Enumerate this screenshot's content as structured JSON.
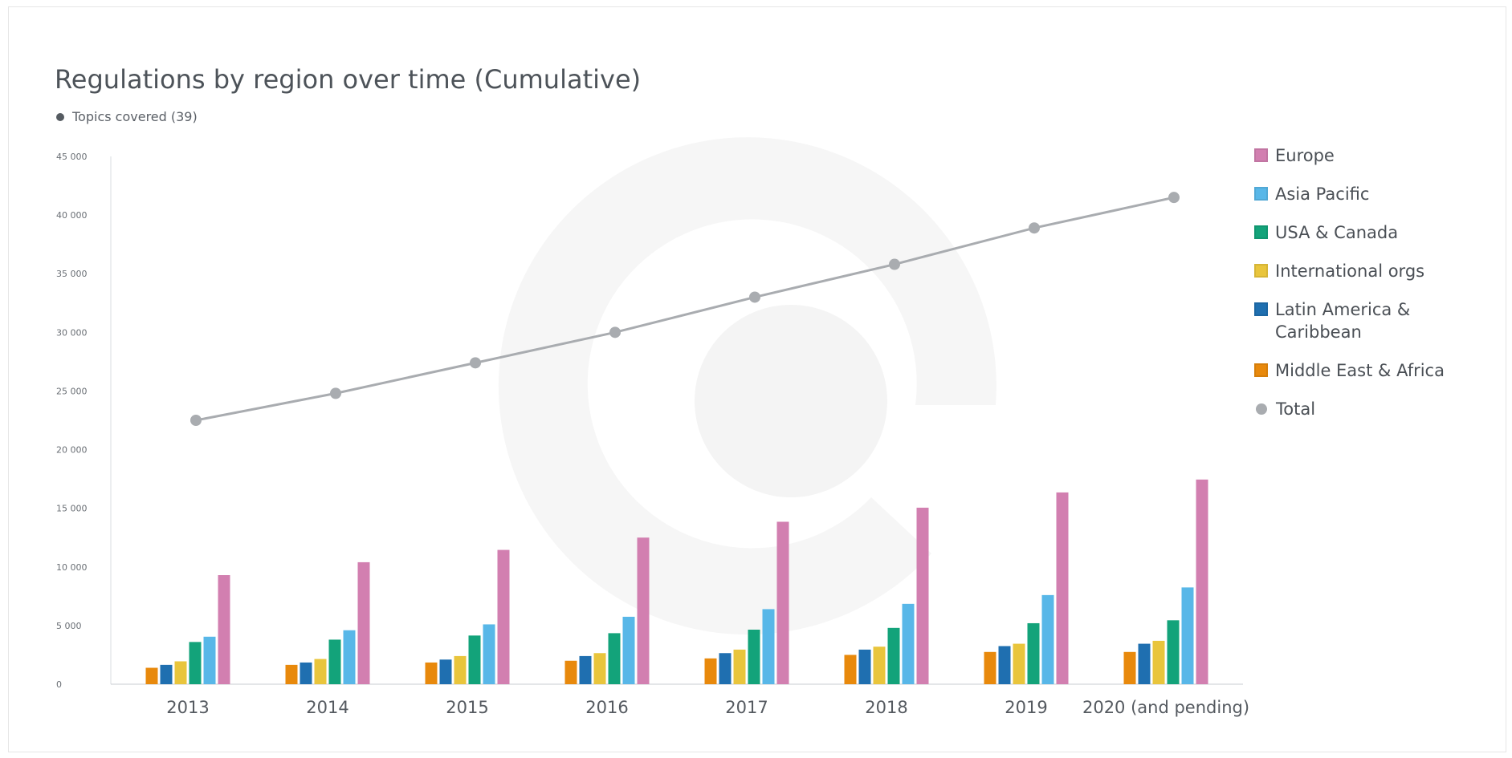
{
  "title": "Regulations by region over time (Cumulative)",
  "subtitle": "Topics covered (39)",
  "chart_data": {
    "type": "bar",
    "title": "Regulations by region over time (Cumulative)",
    "subtitle": "Topics covered (39)",
    "categories": [
      "2013",
      "2014",
      "2015",
      "2016",
      "2017",
      "2018",
      "2019",
      "2020 (and pending)"
    ],
    "ylim": [
      0,
      45000
    ],
    "yticks": [
      0,
      5000,
      10000,
      15000,
      20000,
      25000,
      30000,
      35000,
      40000,
      45000
    ],
    "ytick_labels": [
      "0",
      "5 000",
      "10 000",
      "15 000",
      "20 000",
      "25 000",
      "30 000",
      "35 000",
      "40 000",
      "45 000"
    ],
    "grid": false,
    "legend_position": "right",
    "series": [
      {
        "name": "Middle East & Africa",
        "color": "#e8890c",
        "kind": "bar",
        "values": [
          1400,
          1650,
          1850,
          2000,
          2200,
          2500,
          2750,
          2750
        ]
      },
      {
        "name": "Latin America & Caribbean",
        "color": "#1f6fb0",
        "kind": "bar",
        "values": [
          1650,
          1850,
          2100,
          2400,
          2650,
          2950,
          3250,
          3450
        ]
      },
      {
        "name": "International orgs",
        "color": "#e9c53c",
        "kind": "bar",
        "values": [
          1950,
          2150,
          2400,
          2650,
          2950,
          3200,
          3450,
          3700
        ]
      },
      {
        "name": "USA & Canada",
        "color": "#13a37a",
        "kind": "bar",
        "values": [
          3600,
          3800,
          4150,
          4350,
          4650,
          4800,
          5200,
          5450
        ]
      },
      {
        "name": "Asia Pacific",
        "color": "#58b7e8",
        "kind": "bar",
        "values": [
          4050,
          4600,
          5100,
          5750,
          6400,
          6850,
          7600,
          8250
        ]
      },
      {
        "name": "Europe",
        "color": "#d27fb0",
        "kind": "bar",
        "values": [
          9300,
          10400,
          11450,
          12500,
          13850,
          15050,
          16350,
          17450
        ]
      },
      {
        "name": "Total",
        "color": "#a9acb0",
        "kind": "line",
        "values": [
          22500,
          24800,
          27400,
          30000,
          33000,
          35800,
          38900,
          41500
        ]
      }
    ]
  },
  "legend": [
    {
      "label": "Europe",
      "color": "#d27fb0",
      "shape": "square"
    },
    {
      "label": "Asia Pacific",
      "color": "#58b7e8",
      "shape": "square"
    },
    {
      "label": "USA & Canada",
      "color": "#13a37a",
      "shape": "square"
    },
    {
      "label": "International orgs",
      "color": "#e9c53c",
      "shape": "square"
    },
    {
      "label": "Latin America & Caribbean",
      "color": "#1f6fb0",
      "shape": "square"
    },
    {
      "label": "Middle East & Africa",
      "color": "#e8890c",
      "shape": "square"
    },
    {
      "label": "Total",
      "color": "#a9acb0",
      "shape": "circle"
    }
  ]
}
